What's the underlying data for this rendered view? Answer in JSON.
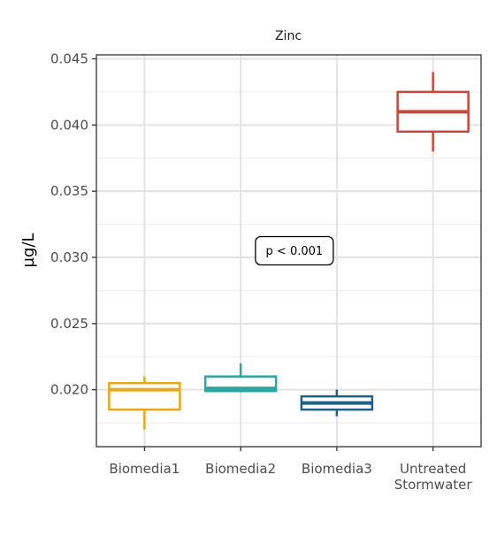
{
  "chart_data": {
    "type": "boxplot",
    "title": "Zinc",
    "xlabel": "",
    "ylabel": "µg/L",
    "ylim": [
      0.0157,
      0.0453
    ],
    "yticks": [
      "0.020",
      "0.025",
      "0.030",
      "0.035",
      "0.040",
      "0.045"
    ],
    "grid": true,
    "categories": [
      "Biomedia1",
      "Biomedia2",
      "Biomedia3",
      "Untreated Stormwater"
    ],
    "category_lines": [
      [
        "Biomedia1"
      ],
      [
        "Biomedia2"
      ],
      [
        "Biomedia3"
      ],
      [
        "Untreated",
        "Stormwater"
      ]
    ],
    "boxes": [
      {
        "category": "Biomedia1",
        "min": 0.017,
        "q1": 0.0185,
        "median": 0.02,
        "q3": 0.0205,
        "max": 0.021,
        "color": "#E6A817"
      },
      {
        "category": "Biomedia2",
        "min": 0.0198,
        "q1": 0.0199,
        "median": 0.0201,
        "q3": 0.021,
        "max": 0.022,
        "color": "#2BA6A2"
      },
      {
        "category": "Biomedia3",
        "min": 0.018,
        "q1": 0.0185,
        "median": 0.019,
        "q3": 0.0195,
        "max": 0.02,
        "color": "#1F5F8B"
      },
      {
        "category": "Untreated Stormwater",
        "min": 0.038,
        "q1": 0.0395,
        "median": 0.041,
        "q3": 0.0425,
        "max": 0.044,
        "color": "#C8473A"
      }
    ],
    "annotation": {
      "text": "p < 0.001",
      "x_category": 2,
      "y": 0.0305
    }
  }
}
